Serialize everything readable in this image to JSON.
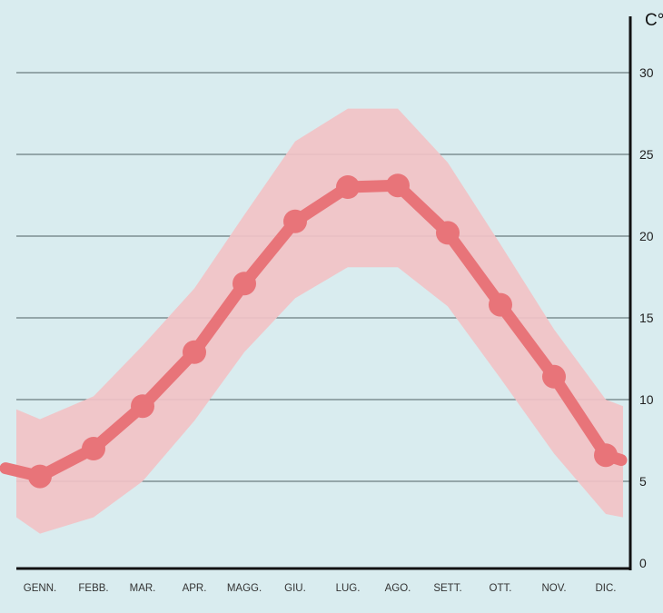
{
  "chart_data": {
    "type": "line",
    "title": "",
    "xlabel": "",
    "ylabel": "C°",
    "categories": [
      "GENN.",
      "FEBB.",
      "MAR.",
      "APR.",
      "MAGG.",
      "GIU.",
      "LUG.",
      "AGO.",
      "SETT.",
      "OTT.",
      "NOV.",
      "DIC."
    ],
    "series": [
      {
        "values": [
          5.3,
          7.0,
          9.6,
          12.9,
          17.1,
          20.9,
          23.0,
          23.1,
          20.2,
          15.8,
          11.4,
          6.6
        ]
      }
    ],
    "band": {
      "upper": [
        8.8,
        10.2,
        13.3,
        16.8,
        21.3,
        25.8,
        27.8,
        27.8,
        24.5,
        19.5,
        14.3,
        10.0
      ],
      "lower": [
        1.8,
        2.8,
        5.0,
        8.7,
        12.9,
        16.2,
        18.1,
        18.1,
        15.7,
        11.3,
        6.7,
        3.0
      ]
    },
    "ylim": [
      0,
      33
    ],
    "yticks": [
      0,
      5,
      10,
      15,
      20,
      25,
      30
    ],
    "grid": true,
    "axis_position": "right",
    "colors": {
      "background": "#d9ecef",
      "band": "#f2c2c6",
      "line": "#e87479",
      "grid": "#6c7d7f",
      "axis": "#111111"
    }
  }
}
